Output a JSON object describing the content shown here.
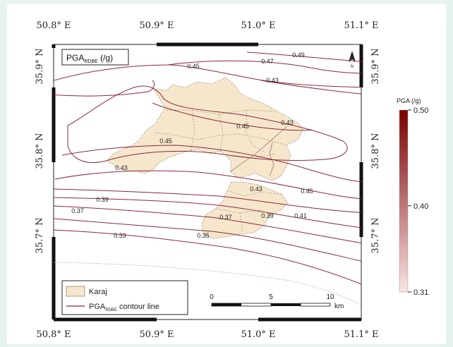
{
  "map": {
    "title_main": "PGA",
    "title_sub": "RDBE",
    "title_unit": " (/g)",
    "north_label": "N",
    "lon_labels_top": [
      "50.8° E",
      "50.9° E",
      "51.0° E",
      "51.1° E"
    ],
    "lon_labels_bottom": [
      "50.8° E",
      "50.9° E",
      "51.0° E",
      "51.1° E"
    ],
    "lat_labels_left": [
      "35.9° N",
      "35.8° N",
      "35.7° N"
    ],
    "lat_labels_right": [
      "35.9° N",
      "35.8° N",
      "35.7° N"
    ],
    "contour_values": [
      "0.49",
      "0.47",
      "0.45",
      "0.43",
      "0.45",
      "0.43",
      "0.45",
      "0.43",
      "0.45",
      "0.43",
      "0.41",
      "0.39",
      "0.39",
      "0.37",
      "0.37",
      "0.35",
      "0.33"
    ],
    "region_name": "Karaj"
  },
  "legend": {
    "karaj_label": "Karaj",
    "contour_label_main": "PGA",
    "contour_label_sub": "RDBE",
    "contour_label_tail": " contour line"
  },
  "scale_bar": {
    "ticks": [
      "0",
      "5",
      "10"
    ],
    "unit": "km"
  },
  "colorbar": {
    "title": "PGA (/g)",
    "min": 0.31,
    "max": 0.5,
    "tick_labels": [
      "0.50",
      "0.40",
      "0.31"
    ],
    "color_low": "#fbe3e3",
    "color_high": "#7a0000"
  },
  "colors": {
    "contour": "#8b2a3a",
    "region_fill": "#f5e6cc",
    "region_stroke": "#9a8a72"
  }
}
